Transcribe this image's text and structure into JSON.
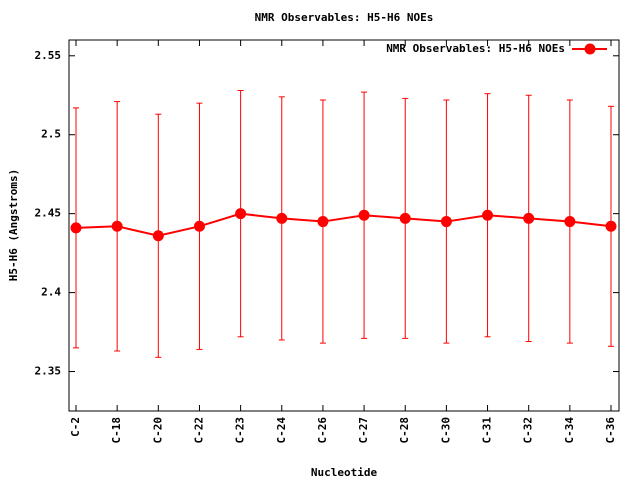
{
  "chart_data": {
    "type": "line",
    "title": "NMR Observables: H5-H6 NOEs",
    "x_label": "Nucleotide",
    "y_label": "H5-H6 (Angstroms)",
    "categories": [
      "C-2",
      "C-18",
      "C-20",
      "C-22",
      "C-23",
      "C-24",
      "C-26",
      "C-27",
      "C-28",
      "C-30",
      "C-31",
      "C-32",
      "C-34",
      "C-36"
    ],
    "series": [
      {
        "name": "NMR Observables: H5-H6 NOEs",
        "color": "#ff0000",
        "values": [
          2.441,
          2.442,
          2.436,
          2.442,
          2.45,
          2.447,
          2.445,
          2.449,
          2.447,
          2.445,
          2.449,
          2.447,
          2.445,
          2.442
        ],
        "errors": [
          0.076,
          0.079,
          0.077,
          0.078,
          0.078,
          0.077,
          0.077,
          0.078,
          0.076,
          0.077,
          0.077,
          0.078,
          0.077,
          0.076
        ]
      }
    ],
    "ylim": [
      2.325,
      2.56
    ],
    "yticks": [
      2.35,
      2.4,
      2.45,
      2.5,
      2.55
    ],
    "legend": "top-right"
  }
}
